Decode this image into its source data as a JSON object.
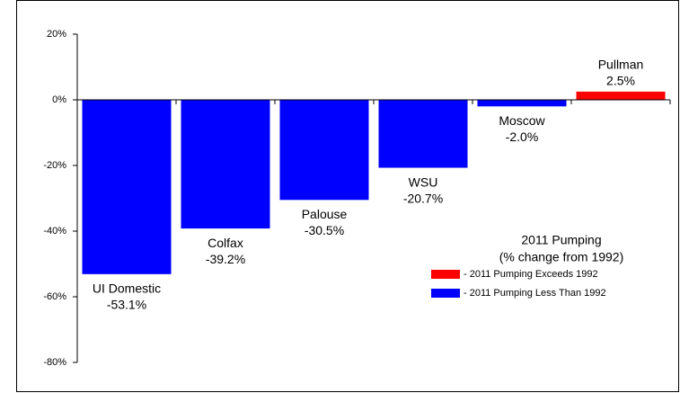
{
  "chart_data": {
    "type": "bar",
    "categories": [
      "UI Domestic",
      "Colfax",
      "Palouse",
      "WSU",
      "Moscow",
      "Pullman"
    ],
    "values": [
      -53.1,
      -39.2,
      -30.5,
      -20.7,
      -2.0,
      2.5
    ],
    "value_labels": [
      "-53.1%",
      "-39.2%",
      "-30.5%",
      "-20.7%",
      "-2.0%",
      "2.5%"
    ],
    "colors": [
      "#0000ff",
      "#0000ff",
      "#0000ff",
      "#0000ff",
      "#0000ff",
      "#ff0000"
    ],
    "ylim": [
      -80,
      20
    ],
    "yticks": [
      {
        "value": 20,
        "label": "20%"
      },
      {
        "value": 0,
        "label": "0%"
      },
      {
        "value": -20,
        "label": "-20%"
      },
      {
        "value": -40,
        "label": "-40%"
      },
      {
        "value": -60,
        "label": "-60%"
      },
      {
        "value": -80,
        "label": "-80%"
      }
    ],
    "legend_title": [
      "2011 Pumping",
      "(% change from 1992)"
    ],
    "legend": [
      {
        "name": "- 2011 Pumping Exceeds 1992",
        "color": "#ff0000"
      },
      {
        "name": "- 2011 Pumping Less Than 1992",
        "color": "#0000ff"
      }
    ]
  }
}
